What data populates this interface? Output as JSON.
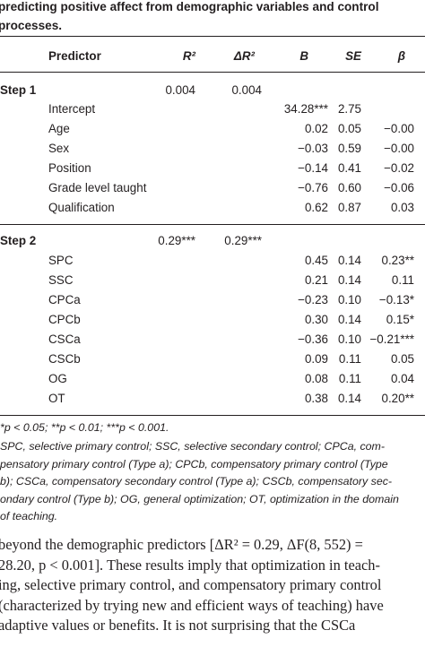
{
  "caption": {
    "line1": "predicting positive affect from demographic variables and control",
    "line2": "processes."
  },
  "table": {
    "headers": {
      "predictor": "Predictor",
      "r2": "R²",
      "delta_r2": "ΔR²",
      "b": "B",
      "se": "SE",
      "beta": "β"
    },
    "step1": {
      "label": "Step 1",
      "r2": "0.004",
      "delta_r2": "0.004",
      "rows": [
        {
          "predictor": "Intercept",
          "b": "34.28***",
          "se": "2.75",
          "beta": ""
        },
        {
          "predictor": "Age",
          "b": "0.02",
          "se": "0.05",
          "beta": "−0.00"
        },
        {
          "predictor": "Sex",
          "b": "−0.03",
          "se": "0.59",
          "beta": "−0.00"
        },
        {
          "predictor": "Position",
          "b": "−0.14",
          "se": "0.41",
          "beta": "−0.02"
        },
        {
          "predictor": "Grade level taught",
          "b": "−0.76",
          "se": "0.60",
          "beta": "−0.06"
        },
        {
          "predictor": "Qualification",
          "b": "0.62",
          "se": "0.87",
          "beta": "0.03"
        }
      ]
    },
    "step2": {
      "label": "Step 2",
      "r2": "0.29***",
      "delta_r2": "0.29***",
      "rows": [
        {
          "predictor": "SPC",
          "b": "0.45",
          "se": "0.14",
          "beta": "0.23**"
        },
        {
          "predictor": "SSC",
          "b": "0.21",
          "se": "0.14",
          "beta": "0.11"
        },
        {
          "predictor": "CPCa",
          "b": "−0.23",
          "se": "0.10",
          "beta": "−0.13*"
        },
        {
          "predictor": "CPCb",
          "b": "0.30",
          "se": "0.14",
          "beta": "0.15*"
        },
        {
          "predictor": "CSCa",
          "b": "−0.36",
          "se": "0.10",
          "beta": "−0.21***"
        },
        {
          "predictor": "CSCb",
          "b": "0.09",
          "se": "0.11",
          "beta": "0.05"
        },
        {
          "predictor": "OG",
          "b": "0.08",
          "se": "0.11",
          "beta": "0.04"
        },
        {
          "predictor": "OT",
          "b": "0.38",
          "se": "0.14",
          "beta": "0.20**"
        }
      ]
    }
  },
  "footnotes": {
    "significance": "*p < 0.05; **p < 0.01; ***p < 0.001.",
    "abbrev_lines": [
      "SPC, selective primary control; SSC, selective secondary control; CPCa, com-",
      "pensatory primary control (Type a); CPCb, compensatory primary control (Type",
      "b); CSCa, compensatory secondary control (Type a); CSCb, compensatory sec-",
      "ondary control (Type b); OG, general optimization; OT, optimization in the domain",
      "of teaching."
    ]
  },
  "body_text": {
    "lines": [
      "beyond the demographic predictors [ΔR² = 0.29, ΔF(8, 552) =",
      "28.20, p < 0.001]. These results imply that optimization in teach-",
      "ing, selective primary control, and compensatory primary control",
      "(characterized by trying new and efficient ways of teaching) have",
      "adaptive values or benefits. It is not surprising that the CSCa"
    ]
  }
}
